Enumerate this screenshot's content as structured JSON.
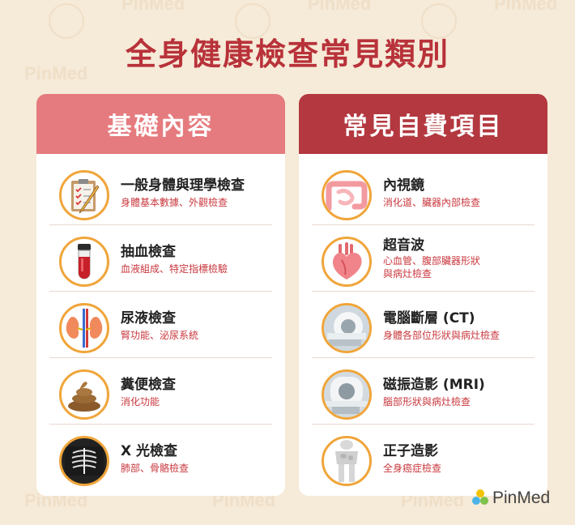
{
  "title": "全身健康檢查常見類別",
  "watermark": "PinMed",
  "brand": {
    "name": "PinMed",
    "colors": {
      "title": "#b8323a",
      "left_header": "#e57b7e",
      "right_header": "#b3383f",
      "icon_ring": "#f0a53a"
    }
  },
  "left": {
    "header": "基礎內容",
    "items": [
      {
        "title": "一般身體與理學檢查",
        "subtitle": "身體基本數據、外觀檢查",
        "icon": "clipboard-icon"
      },
      {
        "title": "抽血檢查",
        "subtitle": "血液組成、特定指標檢驗",
        "icon": "blood-tube-icon"
      },
      {
        "title": "尿液檢查",
        "subtitle": "腎功能、泌尿系統",
        "icon": "kidney-icon"
      },
      {
        "title": "糞便檢查",
        "subtitle": "消化功能",
        "icon": "stool-icon"
      },
      {
        "title": "X 光檢查",
        "subtitle": "肺部、骨骼檢查",
        "icon": "xray-icon"
      }
    ]
  },
  "right": {
    "header": "常見自費項目",
    "items": [
      {
        "title": "內視鏡",
        "subtitle": "消化道、臟器內部檢查",
        "icon": "intestine-icon"
      },
      {
        "title": "超音波",
        "subtitle": "心血管、腹部臟器形狀\n與病灶檢查",
        "icon": "heart-icon"
      },
      {
        "title": "電腦斷層 (CT)",
        "subtitle": "身體各部位形狀與病灶檢查",
        "icon": "ct-scanner-icon"
      },
      {
        "title": "磁振造影 (MRI)",
        "subtitle": "腦部形狀與病灶檢查",
        "icon": "mri-scanner-icon"
      },
      {
        "title": "正子造影",
        "subtitle": "全身癌症檢查",
        "icon": "pet-scan-icon"
      }
    ]
  }
}
